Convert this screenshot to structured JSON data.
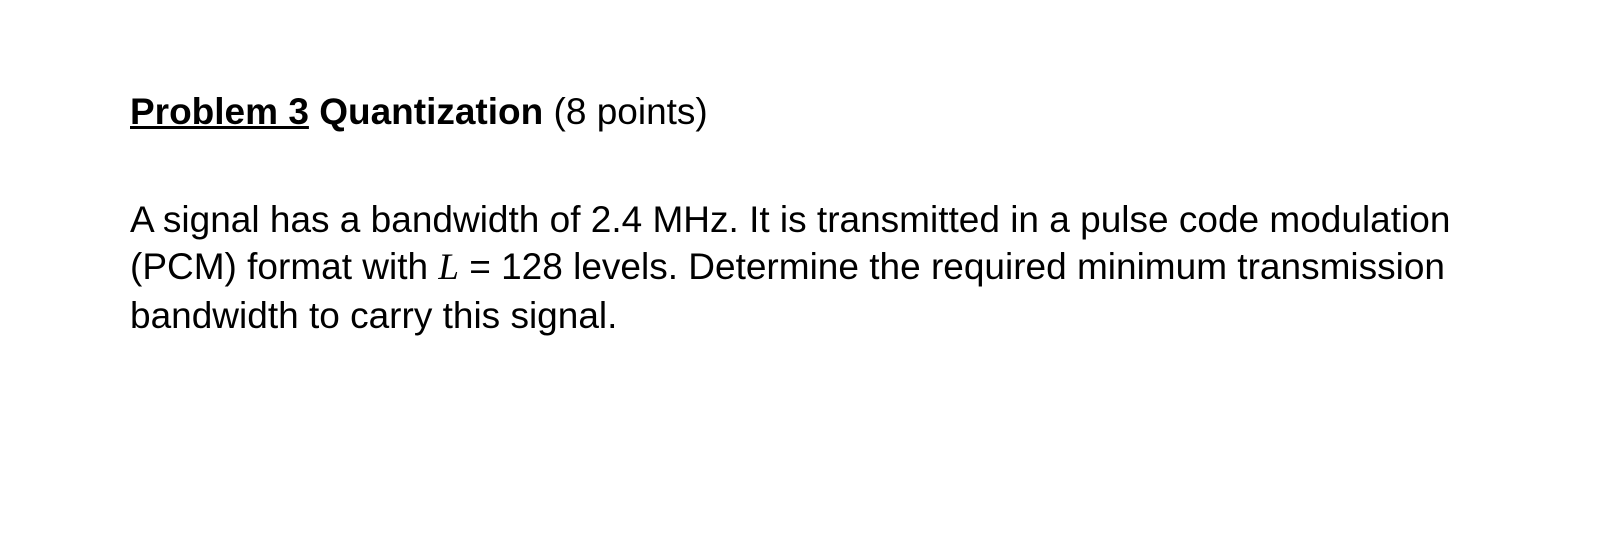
{
  "title": {
    "problem_number": "Problem 3",
    "subtitle": "Quantization",
    "points": "(8 points)"
  },
  "body": {
    "part1": "A signal has a bandwidth of 2.4 MHz.  It is transmitted in a pulse code modulation (PCM) format with ",
    "variable": "L",
    "part2": " = 128 levels.  Determine the required minimum transmission bandwidth to carry this signal."
  },
  "style": {
    "background_color": "#ffffff",
    "text_color": "#000000",
    "font_size": 37,
    "title_margin_bottom": 60
  }
}
